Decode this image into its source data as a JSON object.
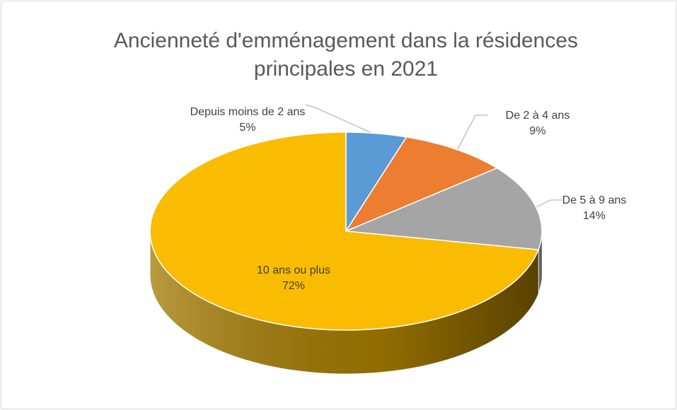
{
  "chart_data": {
    "type": "pie",
    "title": "Ancienneté d'emménagement dans la résidences principales en 2021",
    "categories": [
      "Depuis moins de 2 ans",
      "De 2 à 4 ans",
      "De 5 à 9 ans",
      "10 ans ou plus"
    ],
    "values": [
      5,
      9,
      14,
      72
    ],
    "value_labels": [
      "5%",
      "9%",
      "14%",
      "72%"
    ],
    "colors": [
      "#5b9bd5",
      "#ed7d31",
      "#a5a5a5",
      "#f9bc00"
    ],
    "side_colors": [
      "#3c6e9c",
      "#a8561f",
      "#6a6a6a",
      "#a27800"
    ],
    "three_d": true
  }
}
